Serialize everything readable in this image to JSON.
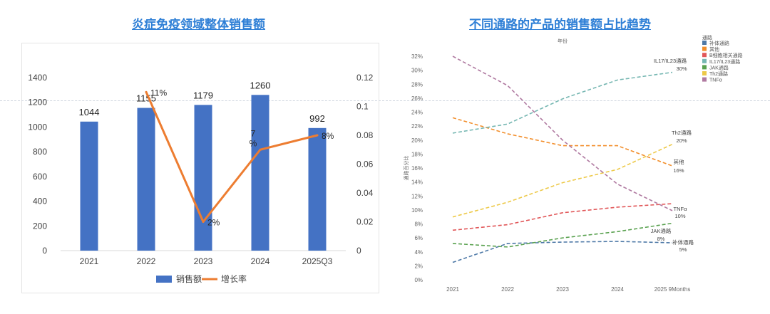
{
  "left_title": "炎症免疫领域整体销售额",
  "right_title": "不同通路的产品的销售额占比趋势",
  "chart_data": [
    {
      "type": "bar",
      "categories": [
        "2021",
        "2022",
        "2023",
        "2024",
        "2025Q3"
      ],
      "series": [
        {
          "name": "销售额",
          "type": "bar",
          "axis": "left",
          "values": [
            1044,
            1155,
            1179,
            1260,
            992
          ],
          "labels": [
            "1044",
            "1155",
            "1179",
            "1260",
            "992"
          ],
          "color": "#4472c4"
        },
        {
          "name": "增长率",
          "type": "line",
          "axis": "right",
          "values": [
            null,
            0.11,
            0.02,
            0.07,
            0.08
          ],
          "labels": [
            "",
            "11%",
            "2%",
            "7 %",
            "8%"
          ],
          "color": "#ed7d31"
        }
      ],
      "y_left": {
        "ticks": [
          "0",
          "200",
          "400",
          "600",
          "800",
          "1000",
          "1200",
          "1400"
        ],
        "range": [
          0,
          1400
        ]
      },
      "y_right": {
        "ticks": [
          "0",
          "0.02",
          "0.04",
          "0.06",
          "0.08",
          "0.1",
          "0.12"
        ],
        "range": [
          0,
          0.12
        ]
      },
      "legend": {
        "position": "bottom",
        "items": [
          "销售额",
          "增长率"
        ]
      }
    },
    {
      "type": "line",
      "x": [
        "2021",
        "2022",
        "2023",
        "2024",
        "2025 9Months"
      ],
      "x_title": "年份",
      "ylabel": "通路百分比",
      "yticks": [
        "0%",
        "2%",
        "4%",
        "6%",
        "8%",
        "10%",
        "12%",
        "14%",
        "16%",
        "18%",
        "20%",
        "22%",
        "24%",
        "26%",
        "28%",
        "30%",
        "32%"
      ],
      "ylim": [
        0,
        32
      ],
      "legend_title": "通路",
      "legend": {
        "position": "top-right"
      },
      "series": [
        {
          "name": "补体通路",
          "color": "#4e79a7",
          "values": [
            2.5,
            5.2,
            5.4,
            5.5,
            5.3
          ],
          "end_label": [
            "补体通路",
            "5%"
          ]
        },
        {
          "name": "其他",
          "color": "#f28e2b",
          "values": [
            23.2,
            20.9,
            19.2,
            19.2,
            16.3
          ],
          "end_label": [
            "其他",
            "16%"
          ]
        },
        {
          "name": "B细胞相关通路",
          "color": "#e15759",
          "values": [
            7.1,
            7.9,
            9.6,
            10.4,
            10.9
          ],
          "end_label": [],
          "legend_label": "B细胞相关通路"
        },
        {
          "name": "IL17/IL23通路",
          "color": "#76b7b2",
          "values": [
            21.0,
            22.3,
            25.9,
            28.6,
            29.7
          ],
          "end_label": [
            "IL17/IL23通路",
            "30%"
          ]
        },
        {
          "name": "JAK通路",
          "color": "#59a14f",
          "values": [
            5.2,
            4.7,
            6.0,
            6.9,
            8.1
          ],
          "end_label": [
            "JAK通路",
            "8%"
          ]
        },
        {
          "name": "Th2通路",
          "color": "#edc948",
          "values": [
            9.0,
            11.1,
            13.9,
            15.8,
            19.4
          ],
          "end_label": [
            "Th2通路",
            "20%"
          ]
        },
        {
          "name": "TNFα",
          "color": "#b07aa1",
          "values": [
            32.0,
            27.8,
            20.0,
            13.7,
            9.9
          ],
          "end_label": [
            "TNFα",
            "10%"
          ]
        }
      ]
    }
  ]
}
